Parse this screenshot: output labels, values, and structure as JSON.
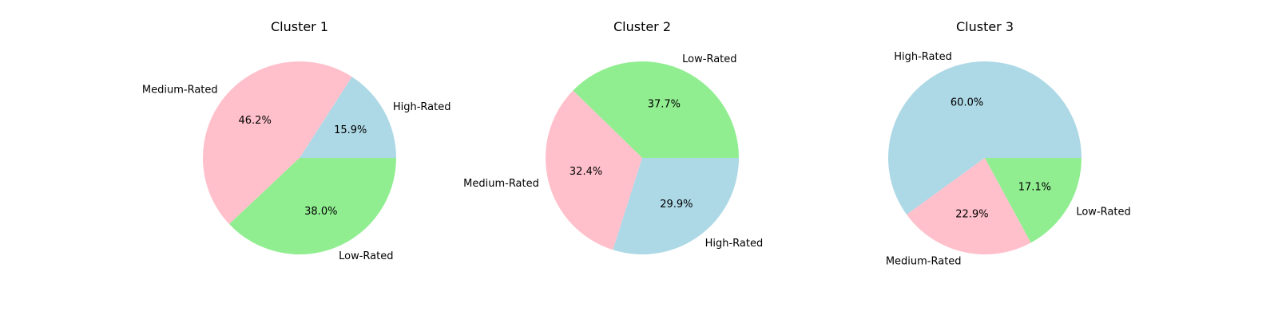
{
  "chart_data": [
    {
      "type": "pie",
      "title": "Cluster 1",
      "slices": [
        {
          "label": "High-Rated",
          "value": 15.9,
          "pct_text": "15.9%",
          "color": "#add8e6"
        },
        {
          "label": "Medium-Rated",
          "value": 46.2,
          "pct_text": "46.2%",
          "color": "#ffc0cb"
        },
        {
          "label": "Low-Rated",
          "value": 38.0,
          "pct_text": "38.0%",
          "color": "#90ee90"
        }
      ]
    },
    {
      "type": "pie",
      "title": "Cluster 2",
      "slices": [
        {
          "label": "Low-Rated",
          "value": 37.7,
          "pct_text": "37.7%",
          "color": "#90ee90"
        },
        {
          "label": "Medium-Rated",
          "value": 32.4,
          "pct_text": "32.4%",
          "color": "#ffc0cb"
        },
        {
          "label": "High-Rated",
          "value": 29.9,
          "pct_text": "29.9%",
          "color": "#add8e6"
        }
      ]
    },
    {
      "type": "pie",
      "title": "Cluster 3",
      "slices": [
        {
          "label": "High-Rated",
          "value": 60.0,
          "pct_text": "60.0%",
          "color": "#add8e6"
        },
        {
          "label": "Medium-Rated",
          "value": 22.9,
          "pct_text": "22.9%",
          "color": "#ffc0cb"
        },
        {
          "label": "Low-Rated",
          "value": 17.1,
          "pct_text": "17.1%",
          "color": "#90ee90"
        }
      ]
    }
  ]
}
